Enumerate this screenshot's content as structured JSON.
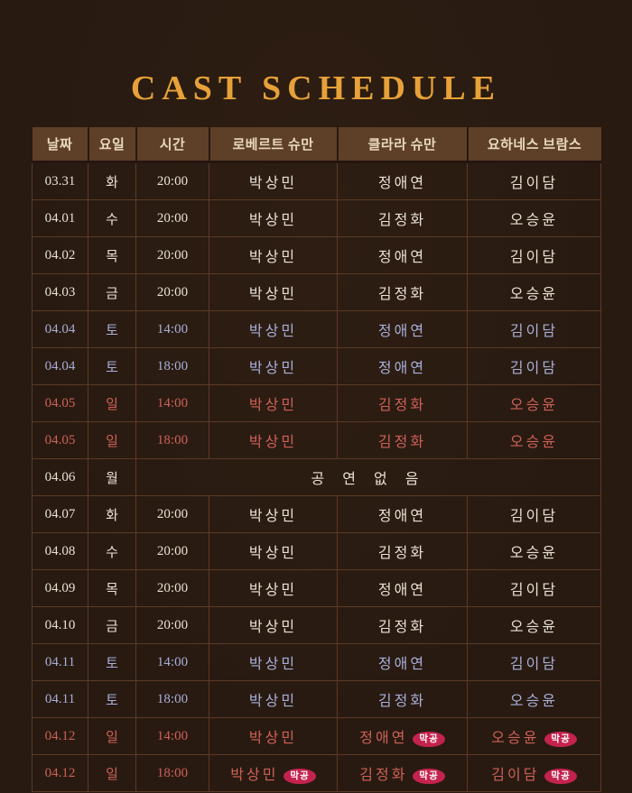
{
  "page": {
    "title": "CAST SCHEDULE",
    "title_color": "#e6a138",
    "background_color": "#281a11"
  },
  "table": {
    "header": {
      "background_color": "#5e3f28",
      "text_color": "#ead9bd",
      "columns": [
        "날짜",
        "요일",
        "시간",
        "로베르트 슈만",
        "클라라 슈만",
        "요하네스 브람스"
      ]
    },
    "colors": {
      "weekday": "#e9e1d2",
      "saturday": "#a8afd8",
      "sunday": "#ce6157",
      "badge_bg": "#c4234e",
      "badge_text": "#ffffff"
    },
    "no_show_label": "공 연 없 음",
    "badge_label": "막공",
    "rows": [
      {
        "date": "03.31",
        "day": "화",
        "time": "20:00",
        "robert": "박상민",
        "clara": "정애연",
        "johannes": "김이담",
        "type": "weekday"
      },
      {
        "date": "04.01",
        "day": "수",
        "time": "20:00",
        "robert": "박상민",
        "clara": "김정화",
        "johannes": "오승윤",
        "type": "weekday"
      },
      {
        "date": "04.02",
        "day": "목",
        "time": "20:00",
        "robert": "박상민",
        "clara": "정애연",
        "johannes": "김이담",
        "type": "weekday"
      },
      {
        "date": "04.03",
        "day": "금",
        "time": "20:00",
        "robert": "박상민",
        "clara": "김정화",
        "johannes": "오승윤",
        "type": "weekday"
      },
      {
        "date": "04.04",
        "day": "토",
        "time": "14:00",
        "robert": "박상민",
        "clara": "정애연",
        "johannes": "김이담",
        "type": "saturday"
      },
      {
        "date": "04.04",
        "day": "토",
        "time": "18:00",
        "robert": "박상민",
        "clara": "정애연",
        "johannes": "김이담",
        "type": "saturday"
      },
      {
        "date": "04.05",
        "day": "일",
        "time": "14:00",
        "robert": "박상민",
        "clara": "김정화",
        "johannes": "오승윤",
        "type": "sunday"
      },
      {
        "date": "04.05",
        "day": "일",
        "time": "18:00",
        "robert": "박상민",
        "clara": "김정화",
        "johannes": "오승윤",
        "type": "sunday"
      },
      {
        "date": "04.06",
        "day": "월",
        "no_show": true,
        "type": "weekday"
      },
      {
        "date": "04.07",
        "day": "화",
        "time": "20:00",
        "robert": "박상민",
        "clara": "정애연",
        "johannes": "김이담",
        "type": "weekday"
      },
      {
        "date": "04.08",
        "day": "수",
        "time": "20:00",
        "robert": "박상민",
        "clara": "김정화",
        "johannes": "오승윤",
        "type": "weekday"
      },
      {
        "date": "04.09",
        "day": "목",
        "time": "20:00",
        "robert": "박상민",
        "clara": "정애연",
        "johannes": "김이담",
        "type": "weekday"
      },
      {
        "date": "04.10",
        "day": "금",
        "time": "20:00",
        "robert": "박상민",
        "clara": "김정화",
        "johannes": "오승윤",
        "type": "weekday"
      },
      {
        "date": "04.11",
        "day": "토",
        "time": "14:00",
        "robert": "박상민",
        "clara": "정애연",
        "johannes": "김이담",
        "type": "saturday"
      },
      {
        "date": "04.11",
        "day": "토",
        "time": "18:00",
        "robert": "박상민",
        "clara": "김정화",
        "johannes": "오승윤",
        "type": "saturday"
      },
      {
        "date": "04.12",
        "day": "일",
        "time": "14:00",
        "robert": "박상민",
        "clara": "정애연",
        "johannes": "오승윤",
        "clara_badge": true,
        "johannes_badge": true,
        "type": "sunday"
      },
      {
        "date": "04.12",
        "day": "일",
        "time": "18:00",
        "robert": "박상민",
        "clara": "김정화",
        "johannes": "김이담",
        "robert_badge": true,
        "clara_badge": true,
        "johannes_badge": true,
        "type": "sunday"
      }
    ]
  }
}
